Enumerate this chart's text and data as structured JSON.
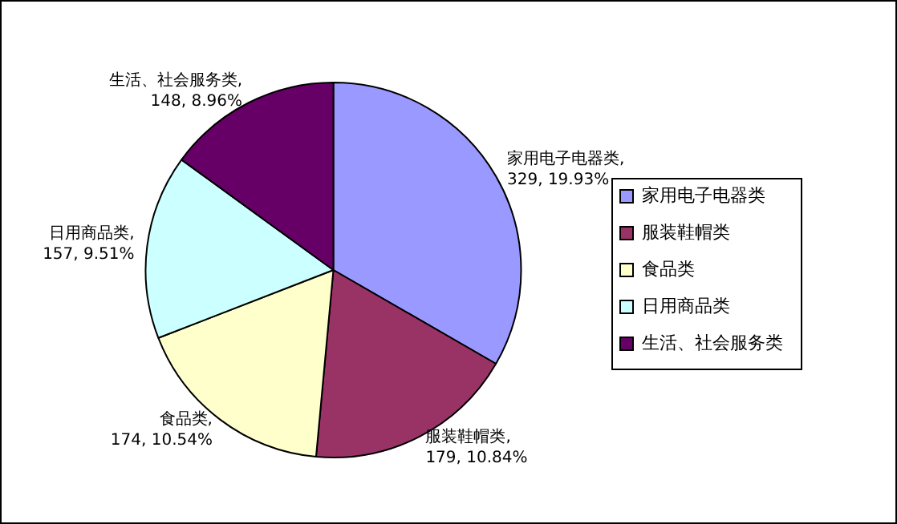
{
  "chart_data": {
    "type": "pie",
    "categories": [
      "家用电子电器类",
      "服装鞋帽类",
      "食品类",
      "日用商品类",
      "生活、社会服务类"
    ],
    "values": [
      329,
      179,
      174,
      157,
      148
    ],
    "colors": [
      "#9999ff",
      "#993366",
      "#ffffcc",
      "#ccffff",
      "#660066"
    ],
    "value_labels": [
      "家用电子电器类, 329, 19.93%",
      "服装鞋帽类, 179, 10.84%",
      "食品类, 174, 10.54%",
      "日用商品类, 157, 9.51%",
      "生活、社会服务类, 148, 8.96%"
    ],
    "legend": "right"
  }
}
